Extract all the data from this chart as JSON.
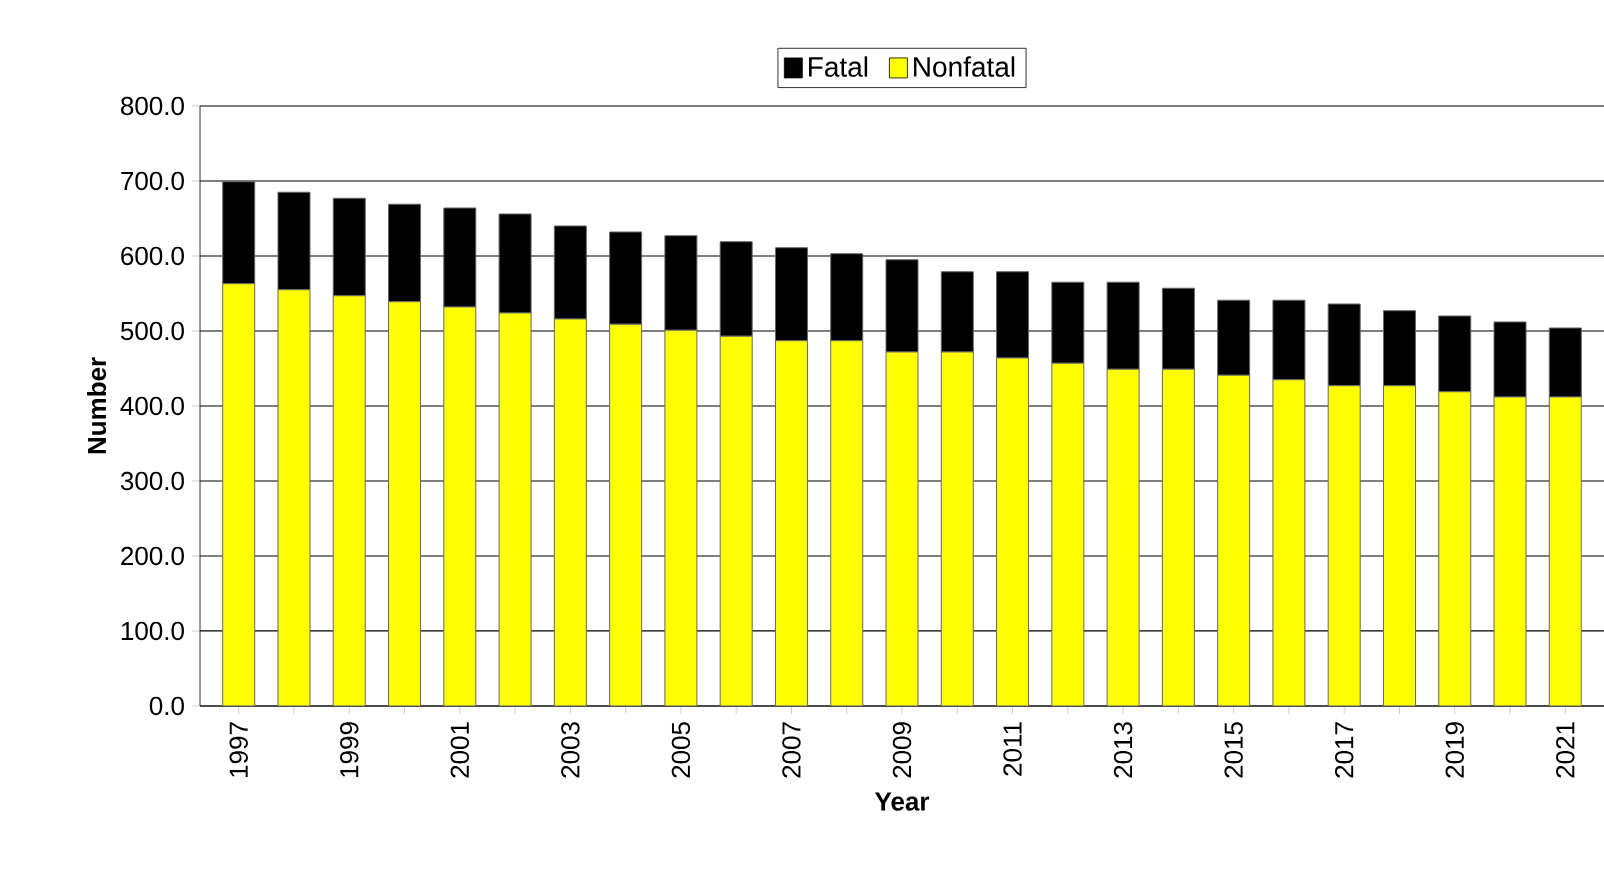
{
  "chart_data": {
    "type": "bar",
    "stacked": true,
    "xlabel": "Year",
    "ylabel": "Number",
    "categories": [
      "1997",
      null,
      "1999",
      null,
      "2001",
      null,
      "2003",
      null,
      "2005",
      null,
      "2007",
      null,
      "2009",
      null,
      "2011",
      null,
      "2013",
      null,
      "2015",
      null,
      "2017",
      null,
      "2019",
      null,
      "2021"
    ],
    "series": [
      {
        "name": "Nonfatal",
        "color": "#ffff00",
        "values": [
          563,
          555,
          547,
          539,
          532,
          524,
          516,
          509,
          501,
          493,
          487,
          487,
          472,
          472,
          464,
          457,
          449,
          449,
          441,
          435,
          427,
          427,
          419,
          412,
          412
        ]
      },
      {
        "name": "Fatal",
        "color": "#000000",
        "values": [
          136,
          130,
          130,
          130,
          132,
          132,
          124,
          123,
          126,
          126,
          124,
          116,
          123,
          107,
          115,
          108,
          116,
          108,
          100,
          106,
          109,
          100,
          101,
          100,
          92
        ]
      }
    ],
    "ylim": [
      0,
      800
    ],
    "yticks": [
      {
        "value": 0,
        "label": "0.0"
      },
      {
        "value": 100,
        "label": "100.0"
      },
      {
        "value": 200,
        "label": "200.0"
      },
      {
        "value": 300,
        "label": "300.0"
      },
      {
        "value": 400,
        "label": "400.0"
      },
      {
        "value": 500,
        "label": "500.0"
      },
      {
        "value": 600,
        "label": "600.0"
      },
      {
        "value": 700,
        "label": "700.0"
      },
      {
        "value": 800,
        "label": "800.0"
      }
    ],
    "grid": "y",
    "legend": "top"
  }
}
